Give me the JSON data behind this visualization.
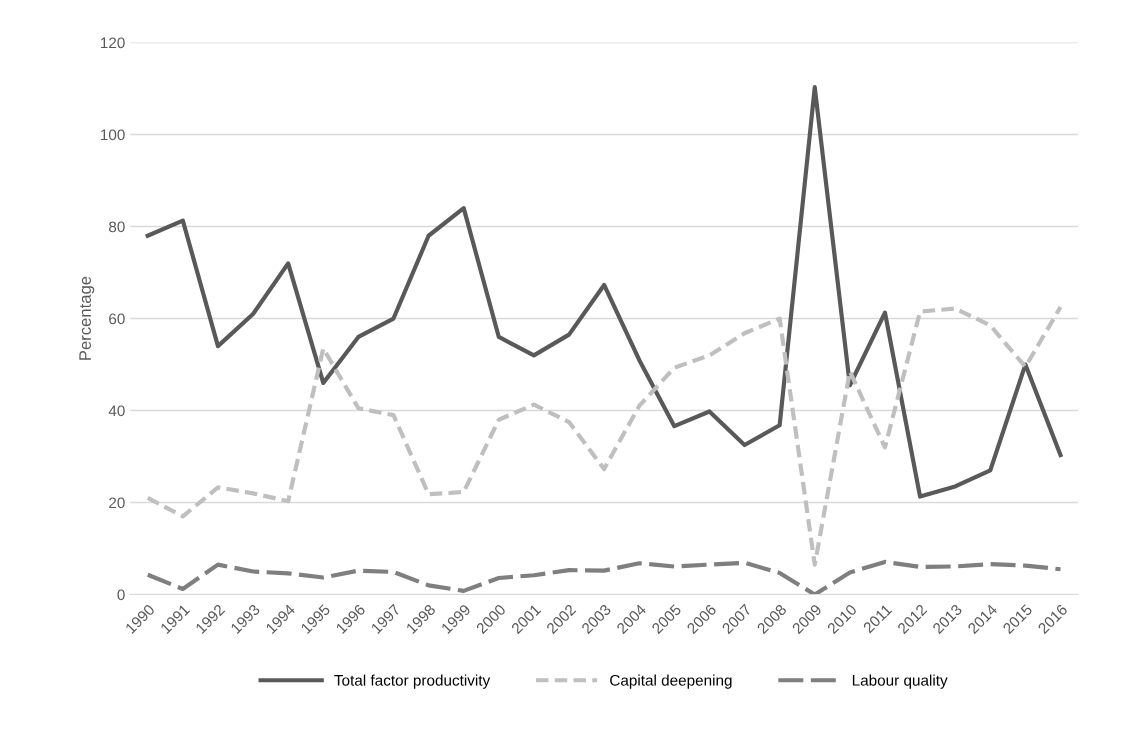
{
  "chart_data": {
    "type": "line",
    "ylabel": "Percentage",
    "categories": [
      "1990",
      "1991",
      "1992",
      "1993",
      "1994",
      "1995",
      "1996",
      "1997",
      "1998",
      "1999",
      "2000",
      "2001",
      "2002",
      "2003",
      "2004",
      "2005",
      "2006",
      "2007",
      "2008",
      "2009",
      "2010",
      "2011",
      "2012",
      "2013",
      "2014",
      "2015",
      "2016"
    ],
    "series": [
      {
        "name": "Total factor productivity",
        "color": "#595959",
        "line_style": "solid",
        "values": [
          78,
          81.3,
          54,
          61,
          72,
          46,
          56,
          60,
          78,
          84,
          56,
          52,
          56.5,
          67.3,
          51,
          36.6,
          39.8,
          32.5,
          36.8,
          110.3,
          45.5,
          61.3,
          21.3,
          23.5,
          27,
          50,
          30.3
        ]
      },
      {
        "name": "Capital deepening",
        "color": "#bfbfbf",
        "line_style": "dashed",
        "values": [
          21,
          17,
          23.3,
          22,
          20.3,
          53.5,
          40.5,
          39,
          21.8,
          22.3,
          38,
          41.3,
          37.5,
          27.3,
          41,
          49.3,
          52,
          56.8,
          60,
          6.5,
          48.5,
          32,
          61.5,
          62.2,
          58.5,
          49.5,
          62.5
        ]
      },
      {
        "name": "Labour quality",
        "color": "#7f7f7f",
        "line_style": "dashed",
        "values": [
          4.3,
          1.2,
          6.5,
          5,
          4.6,
          3.7,
          5.2,
          4.9,
          2,
          0.8,
          3.6,
          4.2,
          5.3,
          5.2,
          6.8,
          6.1,
          6.5,
          6.9,
          4.7,
          0,
          4.8,
          7.1,
          6,
          6.1,
          6.6,
          6.3,
          5.5
        ]
      }
    ],
    "ylim": [
      0,
      120
    ],
    "yticks": [
      0,
      20,
      40,
      60,
      80,
      100,
      120
    ],
    "grid": "y",
    "legend": "bottom",
    "marker": "none"
  }
}
